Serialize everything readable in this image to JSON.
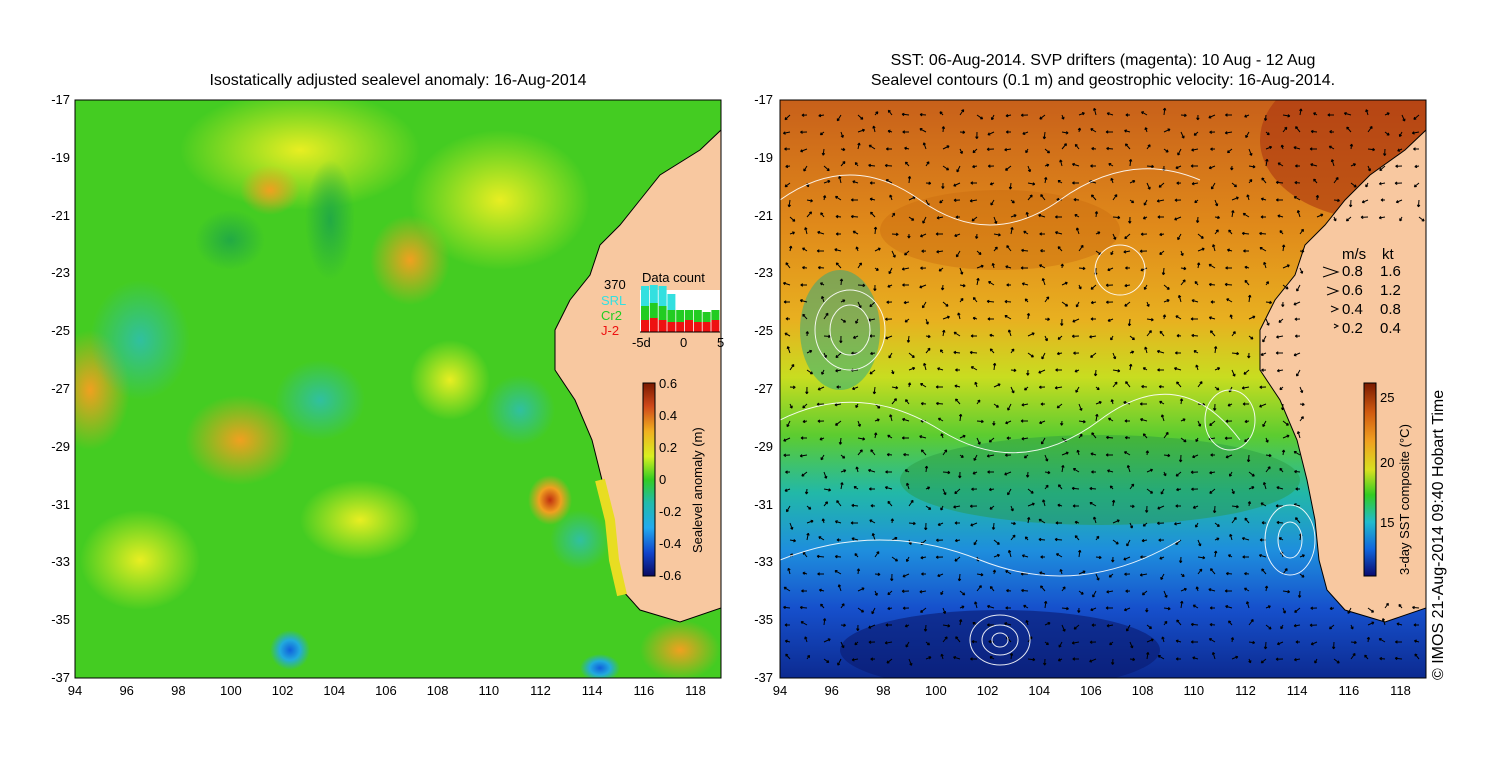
{
  "left_panel": {
    "title": "Isostatically adjusted sealevel anomaly: 16-Aug-2014",
    "y_ticks": [
      "-17",
      "-19",
      "-21",
      "-23",
      "-25",
      "-27",
      "-29",
      "-31",
      "-33",
      "-35",
      "-37"
    ],
    "x_ticks": [
      "94",
      "96",
      "98",
      "100",
      "102",
      "104",
      "106",
      "108",
      "110",
      "112",
      "114",
      "116",
      "118"
    ],
    "colorbar": {
      "label": "Sealevel anomaly (m)",
      "ticks": [
        "0.6",
        "0.4",
        "0.2",
        "0",
        "-0.2",
        "-0.4",
        "-0.6"
      ]
    },
    "data_count": {
      "title": "Data count",
      "max": "370",
      "legend": [
        {
          "label": "SRL",
          "color": "#33e0e0"
        },
        {
          "label": "Cr2",
          "color": "#22cc22"
        },
        {
          "label": "J-2",
          "color": "#ee1111"
        }
      ],
      "x_ticks": [
        "-5d",
        "0",
        "5"
      ]
    }
  },
  "right_panel": {
    "title_line1": "SST: 06-Aug-2014. SVP drifters (magenta): 10 Aug - 12 Aug",
    "title_line2": "Sealevel contours (0.1 m) and geostrophic velocity: 16-Aug-2014.",
    "y_ticks": [
      "-17",
      "-19",
      "-21",
      "-23",
      "-25",
      "-27",
      "-29",
      "-31",
      "-33",
      "-35",
      "-37"
    ],
    "x_ticks": [
      "94",
      "96",
      "98",
      "100",
      "102",
      "104",
      "106",
      "108",
      "110",
      "112",
      "114",
      "116",
      "118"
    ],
    "speed_legend": {
      "headers": [
        "m/s",
        "kt"
      ],
      "rows": [
        [
          "0.8",
          "1.6"
        ],
        [
          "0.6",
          "1.2"
        ],
        [
          "0.4",
          "0.8"
        ],
        [
          "0.2",
          "0.4"
        ]
      ]
    },
    "colorbar": {
      "label": "3-day SST composite (°C)",
      "ticks": [
        "25",
        "20",
        "15"
      ]
    },
    "credit": "© IMOS 21-Aug-2014 09:40 Hobart Time"
  },
  "colors": {
    "land": "#f8c8a0",
    "coast": "#000000",
    "ssh_green": "#44cc22",
    "ssh_yellow": "#ddee22",
    "sst_orange": "#dd7711",
    "sst_blue": "#1133cc",
    "contour": "#ffffff"
  }
}
